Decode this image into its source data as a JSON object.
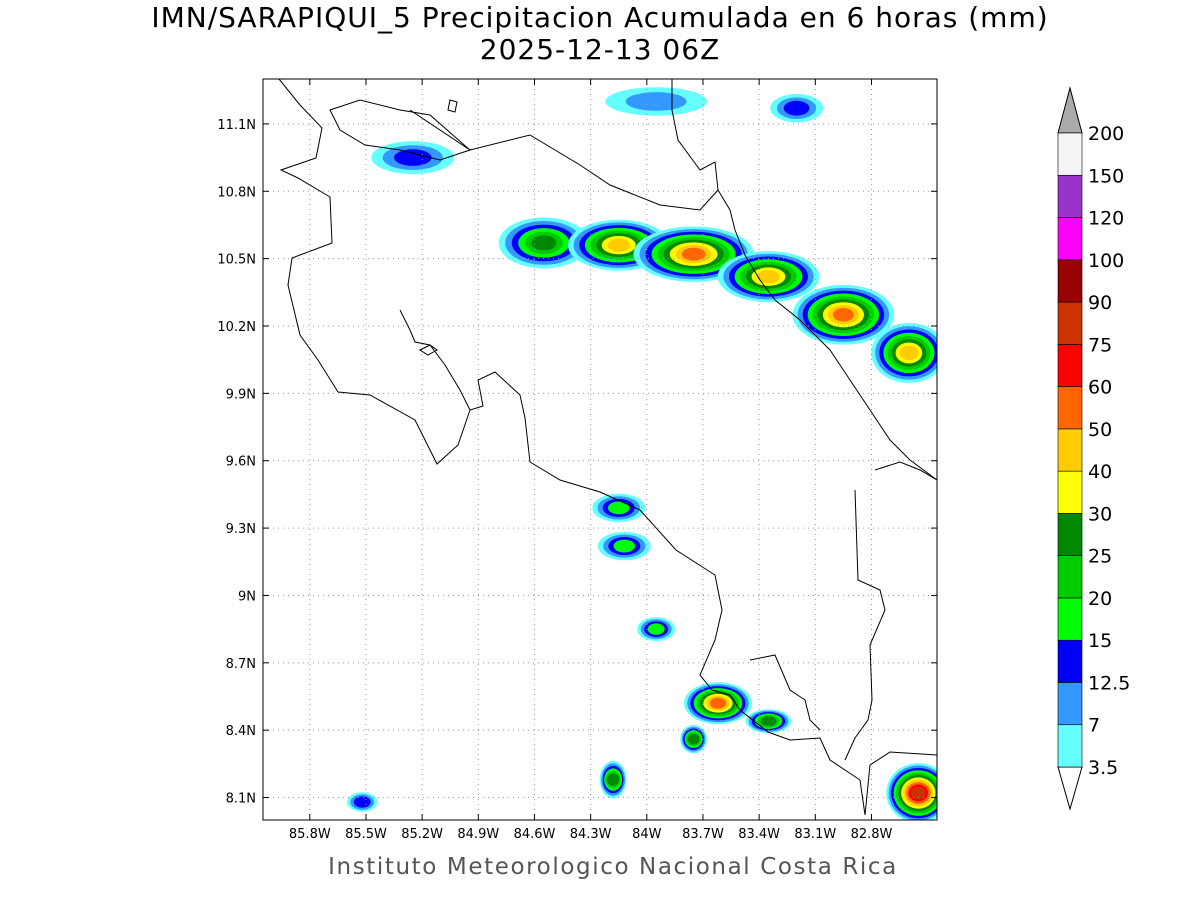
{
  "title": {
    "line1": "IMN/SARAPIQUI_5 Precipitacion Acumulada en 6 horas (mm)",
    "line2": "2025-12-13 06Z"
  },
  "footer": "Instituto Meteorologico Nacional Costa Rica",
  "map": {
    "lon_range": [
      -86.05,
      -82.45
    ],
    "lat_range": [
      8.0,
      11.3
    ],
    "x_ticks": [
      {
        "value": -85.8,
        "label": "85.8W"
      },
      {
        "value": -85.5,
        "label": "85.5W"
      },
      {
        "value": -85.2,
        "label": "85.2W"
      },
      {
        "value": -84.9,
        "label": "84.9W"
      },
      {
        "value": -84.6,
        "label": "84.6W"
      },
      {
        "value": -84.3,
        "label": "84.3W"
      },
      {
        "value": -84.0,
        "label": "84W"
      },
      {
        "value": -83.7,
        "label": "83.7W"
      },
      {
        "value": -83.4,
        "label": "83.4W"
      },
      {
        "value": -83.1,
        "label": "83.1W"
      },
      {
        "value": -82.8,
        "label": "82.8W"
      }
    ],
    "y_ticks": [
      {
        "value": 8.1,
        "label": "8.1N"
      },
      {
        "value": 8.4,
        "label": "8.4N"
      },
      {
        "value": 8.7,
        "label": "8.7N"
      },
      {
        "value": 9.0,
        "label": "9N"
      },
      {
        "value": 9.3,
        "label": "9.3N"
      },
      {
        "value": 9.6,
        "label": "9.6N"
      },
      {
        "value": 9.9,
        "label": "9.9N"
      },
      {
        "value": 10.2,
        "label": "10.2N"
      },
      {
        "value": 10.5,
        "label": "10.5N"
      },
      {
        "value": 10.8,
        "label": "10.8N"
      },
      {
        "value": 11.1,
        "label": "11.1N"
      }
    ],
    "grid": "dotted"
  },
  "colorbar": {
    "levels": [
      {
        "label": "3.5",
        "color": "#66ffff"
      },
      {
        "label": "7",
        "color": "#3399ff"
      },
      {
        "label": "12.5",
        "color": "#0000ff"
      },
      {
        "label": "15",
        "color": "#00ff00"
      },
      {
        "label": "20",
        "color": "#00cc00"
      },
      {
        "label": "25",
        "color": "#008800"
      },
      {
        "label": "30",
        "color": "#ffff00"
      },
      {
        "label": "40",
        "color": "#ffcc00"
      },
      {
        "label": "50",
        "color": "#ff6600"
      },
      {
        "label": "60",
        "color": "#ff0000"
      },
      {
        "label": "75",
        "color": "#cc3300"
      },
      {
        "label": "90",
        "color": "#990000"
      },
      {
        "label": "100",
        "color": "#ff00ff"
      },
      {
        "label": "120",
        "color": "#9933cc"
      },
      {
        "label": "150",
        "color": "#f5f5f5"
      },
      {
        "label": "200",
        "color": "#aaaaaa"
      }
    ]
  },
  "precip_cells": [
    {
      "name": "caribe-band-1",
      "lon": -84.55,
      "lat": 10.57,
      "rx": 0.22,
      "ry": 0.1,
      "level": 5
    },
    {
      "name": "caribe-band-2",
      "lon": -84.15,
      "lat": 10.56,
      "rx": 0.25,
      "ry": 0.1,
      "level": 7
    },
    {
      "name": "caribe-band-3",
      "lon": -83.75,
      "lat": 10.52,
      "rx": 0.3,
      "ry": 0.11,
      "level": 8
    },
    {
      "name": "caribe-band-4",
      "lon": -83.35,
      "lat": 10.42,
      "rx": 0.25,
      "ry": 0.1,
      "level": 7
    },
    {
      "name": "caribe-band-5",
      "lon": -82.95,
      "lat": 10.25,
      "rx": 0.25,
      "ry": 0.12,
      "level": 8
    },
    {
      "name": "caribe-band-6",
      "lon": -82.6,
      "lat": 10.08,
      "rx": 0.18,
      "ry": 0.12,
      "level": 7
    },
    {
      "name": "nicaragua-north",
      "lon": -85.25,
      "lat": 10.95,
      "rx": 0.2,
      "ry": 0.06,
      "level": 2
    },
    {
      "name": "nicaragua-lake",
      "lon": -83.95,
      "lat": 11.2,
      "rx": 0.25,
      "ry": 0.05,
      "level": 1
    },
    {
      "name": "northeast-cell",
      "lon": -83.2,
      "lat": 11.17,
      "rx": 0.12,
      "ry": 0.05,
      "level": 2
    },
    {
      "name": "pacific-cell-1",
      "lon": -84.15,
      "lat": 9.39,
      "rx": 0.12,
      "ry": 0.05,
      "level": 3
    },
    {
      "name": "pacific-cell-2",
      "lon": -84.12,
      "lat": 9.22,
      "rx": 0.12,
      "ry": 0.05,
      "level": 3
    },
    {
      "name": "osa-cell",
      "lon": -83.62,
      "lat": 8.52,
      "rx": 0.16,
      "ry": 0.08,
      "level": 8
    },
    {
      "name": "golfito-cell",
      "lon": -83.35,
      "lat": 8.44,
      "rx": 0.1,
      "ry": 0.04,
      "level": 5
    },
    {
      "name": "coast-cell",
      "lon": -83.75,
      "lat": 8.36,
      "rx": 0.05,
      "ry": 0.05,
      "level": 5
    },
    {
      "name": "sea-cell-1",
      "lon": -84.18,
      "lat": 8.18,
      "rx": 0.05,
      "ry": 0.07,
      "level": 5
    },
    {
      "name": "sea-cell-2",
      "lon": -83.95,
      "lat": 8.85,
      "rx": 0.08,
      "ry": 0.04,
      "level": 3
    },
    {
      "name": "sea-cell-3",
      "lon": -85.52,
      "lat": 8.08,
      "rx": 0.06,
      "ry": 0.03,
      "level": 2
    },
    {
      "name": "panama-cell",
      "lon": -82.55,
      "lat": 8.12,
      "rx": 0.15,
      "ry": 0.12,
      "level": 10
    }
  ]
}
